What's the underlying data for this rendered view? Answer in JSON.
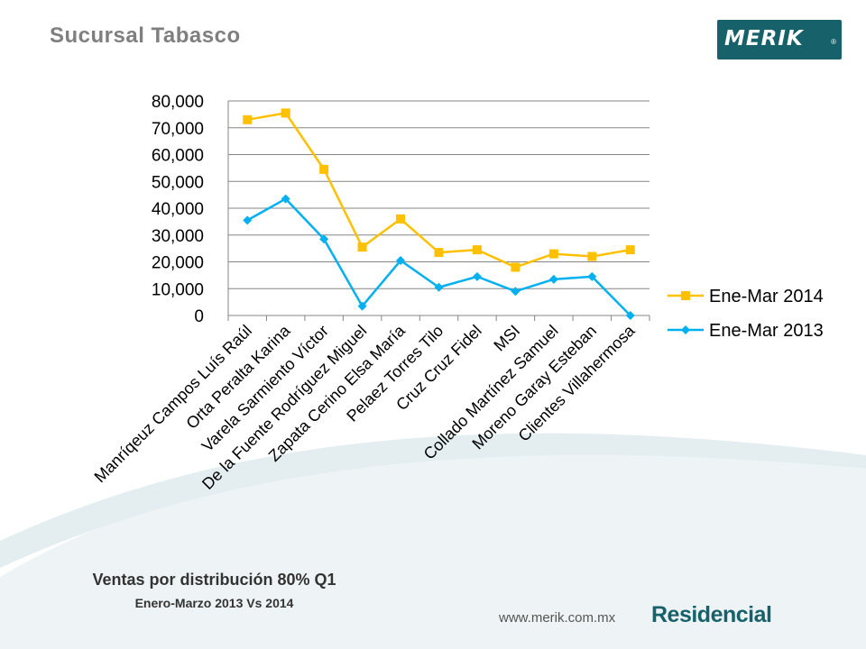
{
  "header": {
    "title": "Sucursal Tabasco",
    "logo_text": "MERIK",
    "logo_reg": "®"
  },
  "footer": {
    "subtitle": "Ventas por distribución 80% Q1",
    "subtitle2": "Enero-Marzo 2013 Vs 2014",
    "website": "www.merik.com.mx",
    "brand": "Residencial"
  },
  "colors": {
    "series_2014": "#ffc000",
    "series_2013": "#00b0f0",
    "brand_teal": "#16616a",
    "gridline": "#868686"
  },
  "chart_data": {
    "type": "line",
    "title": "",
    "xlabel": "",
    "ylabel": "",
    "ylim": [
      0,
      80000
    ],
    "ytick_step": 10000,
    "yticks": [
      "0",
      "10,000",
      "20,000",
      "30,000",
      "40,000",
      "50,000",
      "60,000",
      "70,000",
      "80,000"
    ],
    "grid": true,
    "legend_position": "right",
    "categories": [
      "Manríqeuz Campos Luís Raúl",
      "Orta Peralta Karina",
      "Varela Sarmiento Víctor",
      "De la Fuente Rodríguez Miguel",
      "Zapata Cerino Elsa María",
      "Pelaez Torres Tilo",
      "Cruz Cruz Fidel",
      "MSI",
      "Collado Martínez Samuel",
      "Moreno Garay Esteban",
      "Clientes Villahermosa"
    ],
    "series": [
      {
        "name": "Ene-Mar 2014",
        "color": "#ffc000",
        "marker": "square",
        "values": [
          73000,
          75500,
          54500,
          25500,
          36000,
          23500,
          24500,
          18000,
          23000,
          22000,
          24500
        ]
      },
      {
        "name": "Ene-Mar 2013",
        "color": "#00b0f0",
        "marker": "diamond",
        "values": [
          35500,
          43500,
          28500,
          3500,
          20500,
          10500,
          14500,
          9000,
          13500,
          14500,
          0
        ]
      }
    ]
  }
}
